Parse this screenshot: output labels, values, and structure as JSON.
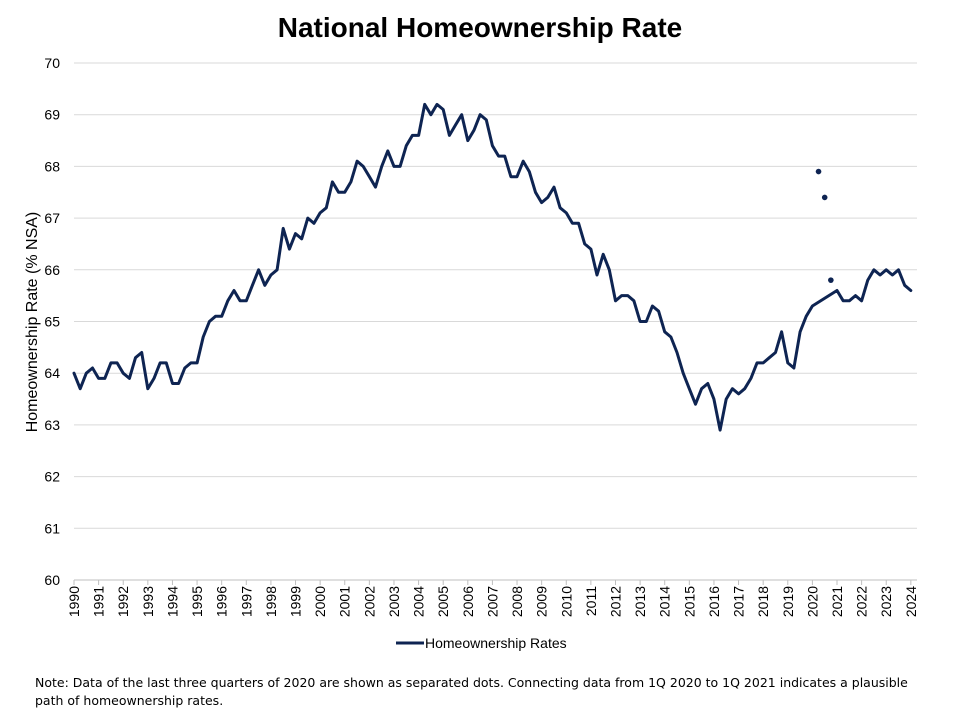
{
  "chart_data": {
    "type": "line",
    "title": "National Homeownership Rate",
    "xlabel": "",
    "ylabel": "Homeownership Rate (% NSA)",
    "ylim": [
      60,
      70
    ],
    "yticks": [
      "60",
      "61",
      "62",
      "63",
      "64",
      "65",
      "66",
      "67",
      "68",
      "69",
      "70"
    ],
    "xlim": [
      1990.0,
      2024.25
    ],
    "xticks": [
      "1990",
      "1991",
      "1992",
      "1993",
      "1994",
      "1995",
      "1996",
      "1997",
      "1998",
      "1999",
      "2000",
      "2001",
      "2002",
      "2003",
      "2004",
      "2005",
      "2006",
      "2007",
      "2008",
      "2009",
      "2010",
      "2011",
      "2012",
      "2013",
      "2014",
      "2015",
      "2016",
      "2017",
      "2018",
      "2019",
      "2020",
      "2021",
      "2022",
      "2023",
      "2024"
    ],
    "grid": true,
    "legend_position": "bottom",
    "colors": {
      "series": "#0e2452",
      "grid": "#d9d9d9",
      "axis": "#bfbfbf"
    },
    "series": [
      {
        "name": "Homeownership Rates",
        "x": [
          1990.0,
          1990.25,
          1990.5,
          1990.75,
          1991.0,
          1991.25,
          1991.5,
          1991.75,
          1992.0,
          1992.25,
          1992.5,
          1992.75,
          1993.0,
          1993.25,
          1993.5,
          1993.75,
          1994.0,
          1994.25,
          1994.5,
          1994.75,
          1995.0,
          1995.25,
          1995.5,
          1995.75,
          1996.0,
          1996.25,
          1996.5,
          1996.75,
          1997.0,
          1997.25,
          1997.5,
          1997.75,
          1998.0,
          1998.25,
          1998.5,
          1998.75,
          1999.0,
          1999.25,
          1999.5,
          1999.75,
          2000.0,
          2000.25,
          2000.5,
          2000.75,
          2001.0,
          2001.25,
          2001.5,
          2001.75,
          2002.0,
          2002.25,
          2002.5,
          2002.75,
          2003.0,
          2003.25,
          2003.5,
          2003.75,
          2004.0,
          2004.25,
          2004.5,
          2004.75,
          2005.0,
          2005.25,
          2005.5,
          2005.75,
          2006.0,
          2006.25,
          2006.5,
          2006.75,
          2007.0,
          2007.25,
          2007.5,
          2007.75,
          2008.0,
          2008.25,
          2008.5,
          2008.75,
          2009.0,
          2009.25,
          2009.5,
          2009.75,
          2010.0,
          2010.25,
          2010.5,
          2010.75,
          2011.0,
          2011.25,
          2011.5,
          2011.75,
          2012.0,
          2012.25,
          2012.5,
          2012.75,
          2013.0,
          2013.25,
          2013.5,
          2013.75,
          2014.0,
          2014.25,
          2014.5,
          2014.75,
          2015.0,
          2015.25,
          2015.5,
          2015.75,
          2016.0,
          2016.25,
          2016.5,
          2016.75,
          2017.0,
          2017.25,
          2017.5,
          2017.75,
          2018.0,
          2018.25,
          2018.5,
          2018.75,
          2019.0,
          2019.25,
          2019.5,
          2019.75,
          2020.0,
          2021.0,
          2021.25,
          2021.5,
          2021.75,
          2022.0,
          2022.25,
          2022.5,
          2022.75,
          2023.0,
          2023.25,
          2023.5,
          2023.75,
          2024.0
        ],
        "values": [
          64.0,
          63.7,
          64.0,
          64.1,
          63.9,
          63.9,
          64.2,
          64.2,
          64.0,
          63.9,
          64.3,
          64.4,
          63.7,
          63.9,
          64.2,
          64.2,
          63.8,
          63.8,
          64.1,
          64.2,
          64.2,
          64.7,
          65.0,
          65.1,
          65.1,
          65.4,
          65.6,
          65.4,
          65.4,
          65.7,
          66.0,
          65.7,
          65.9,
          66.0,
          66.8,
          66.4,
          66.7,
          66.6,
          67.0,
          66.9,
          67.1,
          67.2,
          67.7,
          67.5,
          67.5,
          67.7,
          68.1,
          68.0,
          67.8,
          67.6,
          68.0,
          68.3,
          68.0,
          68.0,
          68.4,
          68.6,
          68.6,
          69.2,
          69.0,
          69.2,
          69.1,
          68.6,
          68.8,
          69.0,
          68.5,
          68.7,
          69.0,
          68.9,
          68.4,
          68.2,
          68.2,
          67.8,
          67.8,
          68.1,
          67.9,
          67.5,
          67.3,
          67.4,
          67.6,
          67.2,
          67.1,
          66.9,
          66.9,
          66.5,
          66.4,
          65.9,
          66.3,
          66.0,
          65.4,
          65.5,
          65.5,
          65.4,
          65.0,
          65.0,
          65.3,
          65.2,
          64.8,
          64.7,
          64.4,
          64.0,
          63.7,
          63.4,
          63.7,
          63.8,
          63.5,
          62.9,
          63.5,
          63.7,
          63.6,
          63.7,
          63.9,
          64.2,
          64.2,
          64.3,
          64.4,
          64.8,
          64.2,
          64.1,
          64.8,
          65.1,
          65.3,
          65.6,
          65.4,
          65.4,
          65.5,
          65.4,
          65.8,
          66.0,
          65.9,
          66.0,
          65.9,
          66.0,
          65.7,
          65.6
        ]
      },
      {
        "name": "",
        "type": "scatter",
        "x": [
          2020.25,
          2020.5,
          2020.75
        ],
        "values": [
          67.9,
          67.4,
          65.8
        ]
      }
    ]
  },
  "note": "Note: Data of the last three quarters of 2020  are shown as separated dots. Connecting data from 1Q 2020  to 1Q 2021 indicates a plausible path of homeownership rates."
}
